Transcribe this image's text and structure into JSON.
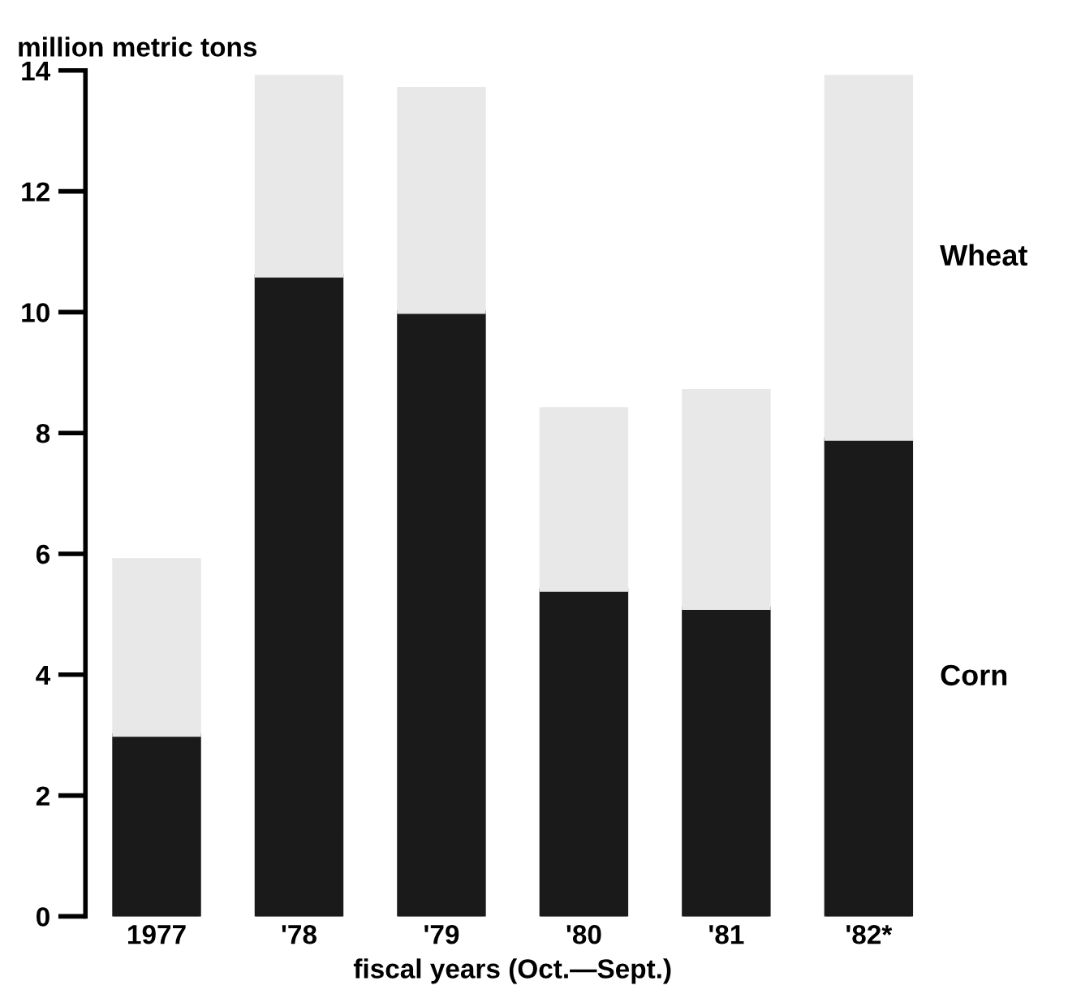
{
  "chart_data": {
    "type": "bar",
    "stacked": true,
    "ylabel": "million metric tons",
    "xlabel": "fiscal years (Oct.—Sept.)",
    "categories": [
      "1977",
      "'78",
      "'79",
      "'80",
      "'81",
      "'82*"
    ],
    "series": [
      {
        "name": "Corn",
        "color": "#1a1a1a",
        "values": [
          3.0,
          10.6,
          10.0,
          5.4,
          5.1,
          7.9
        ]
      },
      {
        "name": "Wheat",
        "color": "#e8e8e8",
        "values": [
          2.9,
          3.3,
          3.7,
          3.0,
          3.6,
          6.0
        ]
      }
    ],
    "ylim": [
      0,
      14
    ],
    "yticks": [
      0,
      2,
      4,
      6,
      8,
      10,
      12,
      14
    ],
    "grid": false,
    "legend": false
  }
}
